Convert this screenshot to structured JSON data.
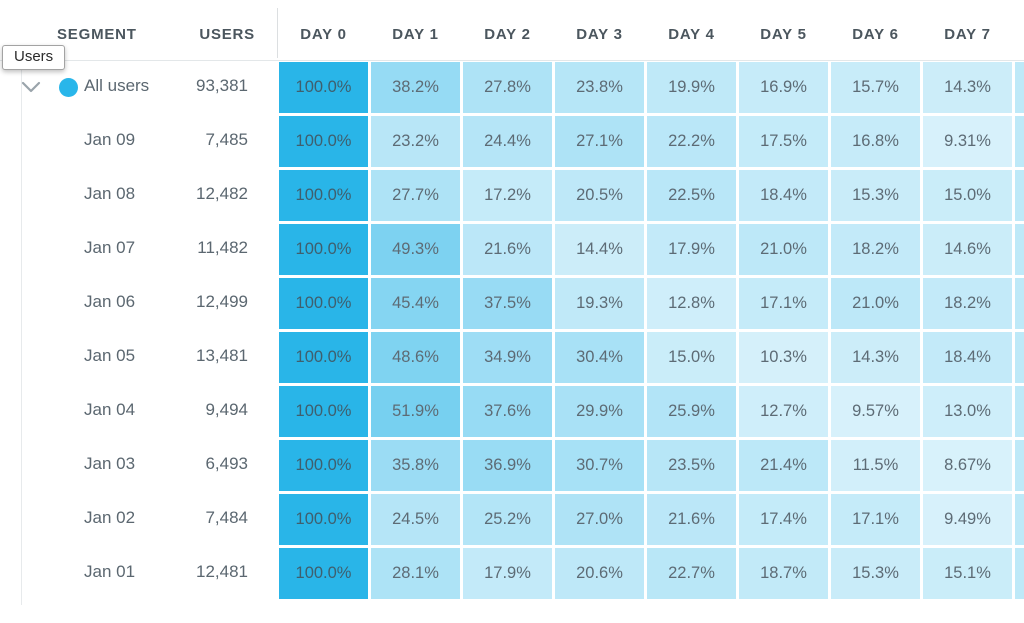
{
  "tooltip": {
    "text": "Users"
  },
  "columns": {
    "segment": "SEGMENT",
    "users": "USERS",
    "days": [
      "DAY 0",
      "DAY 1",
      "DAY 2",
      "DAY 3",
      "DAY 4",
      "DAY 5",
      "DAY 6",
      "DAY 7"
    ]
  },
  "rows": [
    {
      "segment": "All users",
      "users": "93,381",
      "expanded": true,
      "has_dot": true,
      "values": [
        "100.0%",
        "38.2%",
        "27.8%",
        "23.8%",
        "19.9%",
        "16.9%",
        "15.7%",
        "14.3%"
      ]
    },
    {
      "segment": "Jan 09",
      "users": "7,485",
      "values": [
        "100.0%",
        "23.2%",
        "24.4%",
        "27.1%",
        "22.2%",
        "17.5%",
        "16.8%",
        "9.31%"
      ]
    },
    {
      "segment": "Jan 08",
      "users": "12,482",
      "values": [
        "100.0%",
        "27.7%",
        "17.2%",
        "20.5%",
        "22.5%",
        "18.4%",
        "15.3%",
        "15.0%"
      ]
    },
    {
      "segment": "Jan 07",
      "users": "11,482",
      "values": [
        "100.0%",
        "49.3%",
        "21.6%",
        "14.4%",
        "17.9%",
        "21.0%",
        "18.2%",
        "14.6%"
      ]
    },
    {
      "segment": "Jan 06",
      "users": "12,499",
      "values": [
        "100.0%",
        "45.4%",
        "37.5%",
        "19.3%",
        "12.8%",
        "17.1%",
        "21.0%",
        "18.2%"
      ]
    },
    {
      "segment": "Jan 05",
      "users": "13,481",
      "values": [
        "100.0%",
        "48.6%",
        "34.9%",
        "30.4%",
        "15.0%",
        "10.3%",
        "14.3%",
        "18.4%"
      ]
    },
    {
      "segment": "Jan 04",
      "users": "9,494",
      "values": [
        "100.0%",
        "51.9%",
        "37.6%",
        "29.9%",
        "25.9%",
        "12.7%",
        "9.57%",
        "13.0%"
      ]
    },
    {
      "segment": "Jan 03",
      "users": "6,493",
      "values": [
        "100.0%",
        "35.8%",
        "36.9%",
        "30.7%",
        "23.5%",
        "21.4%",
        "11.5%",
        "8.67%"
      ]
    },
    {
      "segment": "Jan 02",
      "users": "7,484",
      "values": [
        "100.0%",
        "24.5%",
        "25.2%",
        "27.0%",
        "21.6%",
        "17.4%",
        "17.1%",
        "9.49%"
      ]
    },
    {
      "segment": "Jan 01",
      "users": "12,481",
      "values": [
        "100.0%",
        "28.1%",
        "17.9%",
        "20.6%",
        "22.7%",
        "18.7%",
        "15.3%",
        "15.1%"
      ]
    }
  ],
  "colors": {
    "cell_base": "#29B5E8",
    "dot": "#29B6EA"
  }
}
